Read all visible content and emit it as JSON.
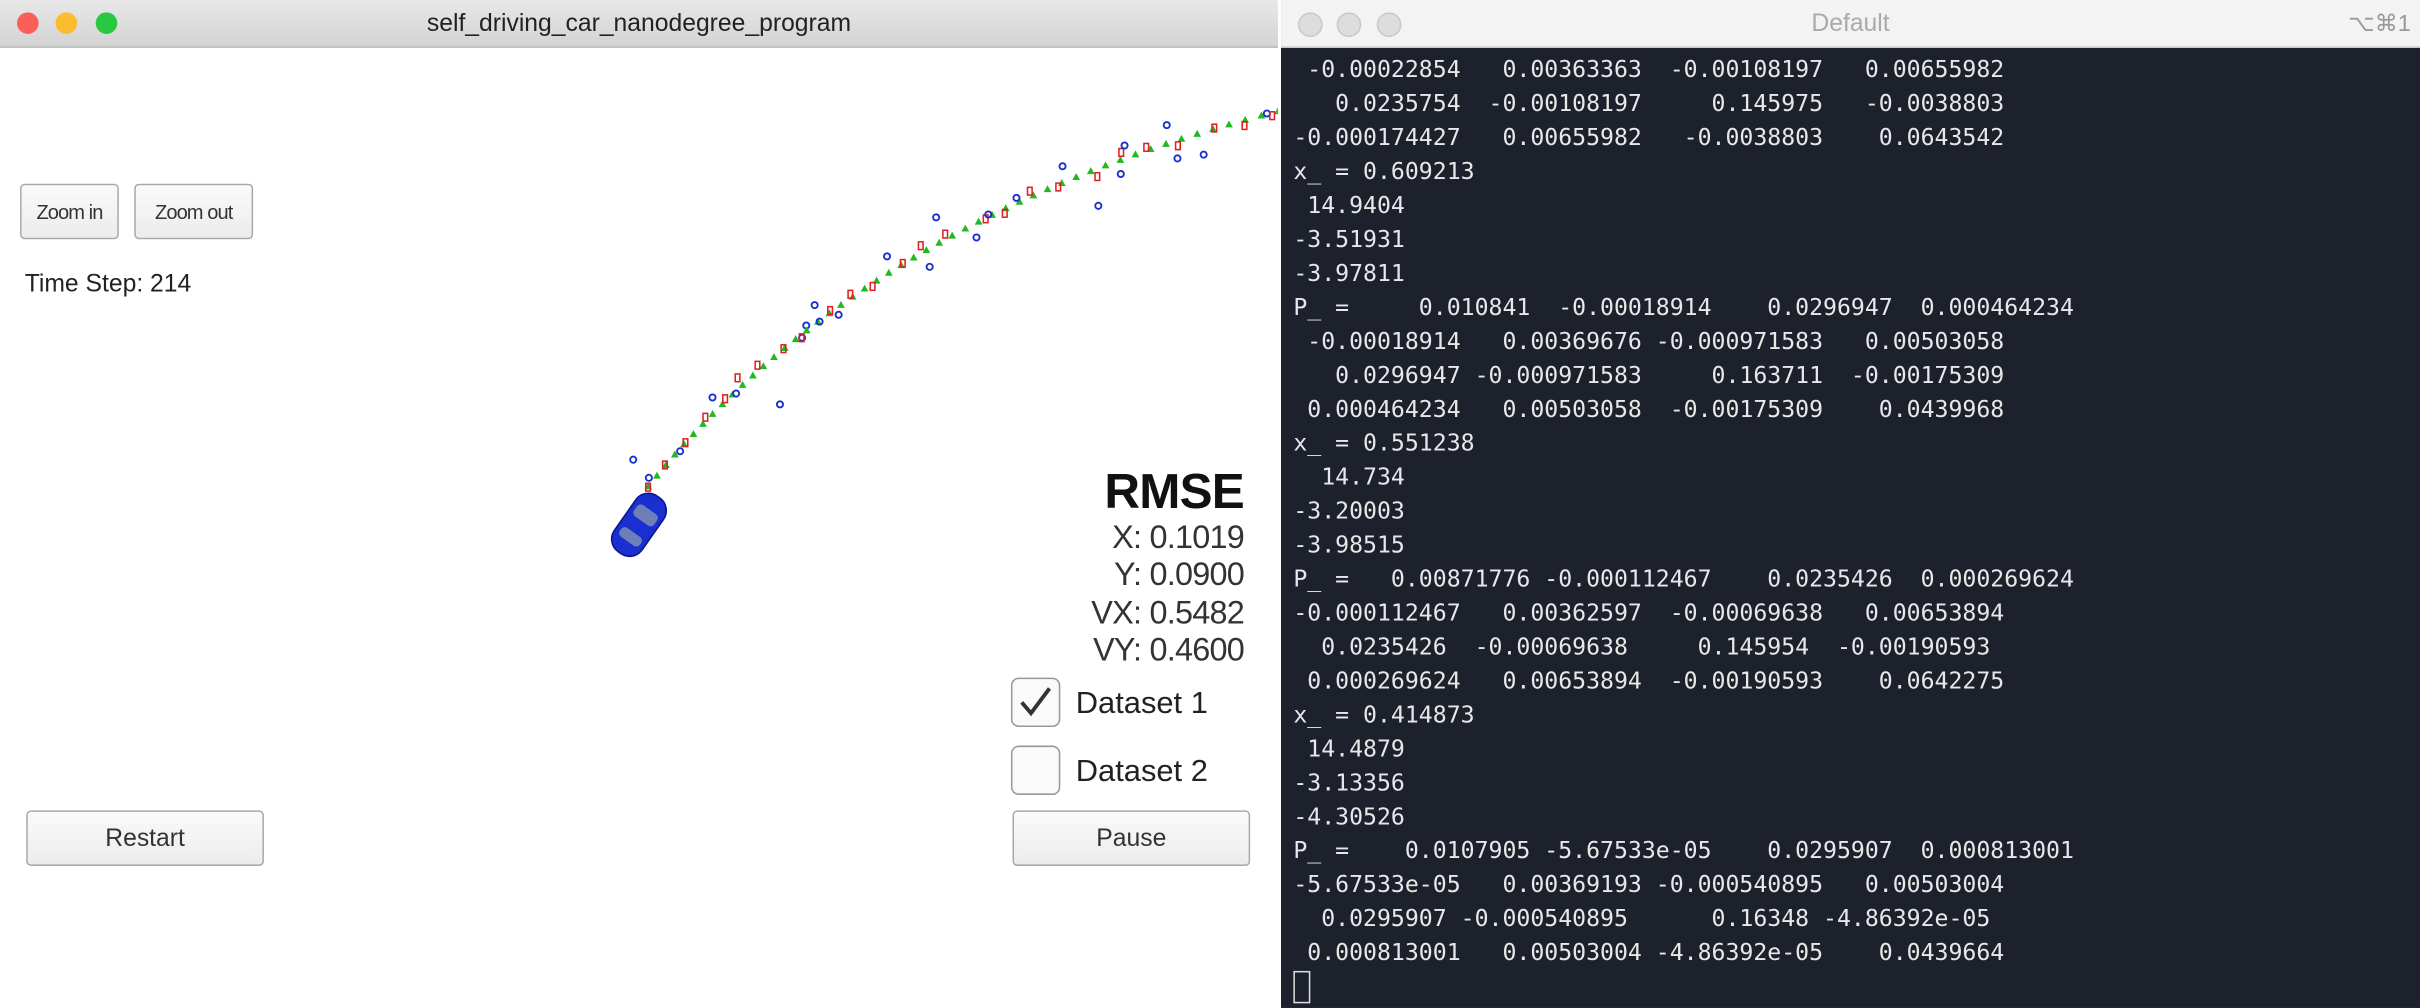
{
  "sim_window": {
    "title": "self_driving_car_nanodegree_program",
    "buttons": {
      "zoom_in": "Zoom in",
      "zoom_out": "Zoom out",
      "restart": "Restart",
      "pause": "Pause"
    },
    "time_step": "Time Step: 214",
    "rmse": {
      "title": "RMSE",
      "lines": [
        "X: 0.1019",
        "Y: 0.0900",
        "VX: 0.5482",
        "VY: 0.4600"
      ]
    },
    "datasets": [
      "Dataset 1",
      "Dataset 2"
    ]
  },
  "terminal": {
    "title": "Default",
    "shortcut": "⌥⌘1",
    "lines": [
      " -0.00022854   0.00363363  -0.00108197   0.00655982",
      "   0.0235754  -0.00108197     0.145975   -0.0038803",
      "-0.000174427   0.00655982   -0.0038803    0.0643542",
      "x_ = 0.609213",
      " 14.9404",
      "-3.51931",
      "-3.97811",
      "P_ =     0.010841  -0.00018914    0.0296947  0.000464234",
      " -0.00018914   0.00369676 -0.000971583   0.00503058",
      "   0.0296947 -0.000971583     0.163711  -0.00175309",
      " 0.000464234   0.00503058  -0.00175309    0.0439968",
      "x_ = 0.551238",
      "  14.734",
      "-3.20003",
      "-3.98515",
      "P_ =   0.00871776 -0.000112467    0.0235426  0.000269624",
      "-0.000112467   0.00362597  -0.00069638   0.00653894",
      "  0.0235426  -0.00069638     0.145954  -0.00190593",
      " 0.000269624   0.00653894  -0.00190593    0.0642275",
      "x_ = 0.414873",
      " 14.4879",
      "-3.13356",
      "-4.30526",
      "P_ =    0.0107905 -5.67533e-05    0.0295907  0.000813001",
      "-5.67533e-05   0.00369193 -0.000540895   0.00503004",
      "  0.0295907 -0.000540895      0.16348 -4.86392e-05",
      " 0.000813001   0.00503004 -4.86392e-05    0.0439664"
    ]
  }
}
